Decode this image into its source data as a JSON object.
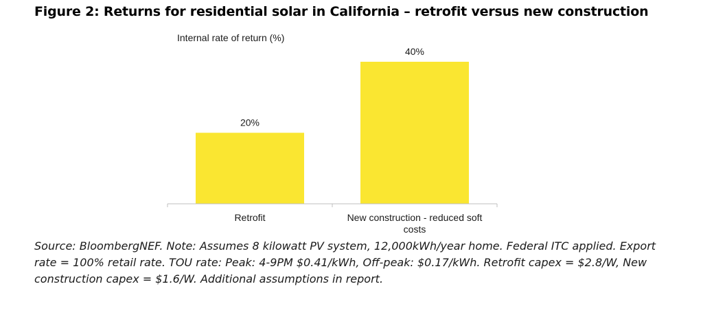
{
  "figure": {
    "title": "Figure 2: Returns for residential solar in California – retrofit versus new construction",
    "caption": "Source: BloombergNEF. Note: Assumes 8 kilowatt PV system, 12,000kWh/year home. Federal ITC applied. Export rate = 100% retail rate. TOU rate: Peak: 4-9PM $0.41/kWh, Off-peak: $0.17/kWh. Retrofit capex = $2.8/W, New construction capex = $1.6/W. Additional assumptions in report."
  },
  "chart_data": {
    "type": "bar",
    "title": "Figure 2: Returns for residential solar in California – retrofit versus new construction",
    "ylabel": "Internal rate of return (%)",
    "xlabel": "",
    "categories": [
      "Retrofit",
      "New construction - reduced soft costs"
    ],
    "category_lines": [
      [
        "Retrofit"
      ],
      [
        "New construction - reduced soft",
        "costs"
      ]
    ],
    "values": [
      20,
      40
    ],
    "data_labels": [
      "20%",
      "40%"
    ],
    "ylim": [
      0,
      40
    ],
    "bar_color": "#FAE631",
    "axis_color": "#BFBFBF",
    "grid": false,
    "legend": "none"
  }
}
